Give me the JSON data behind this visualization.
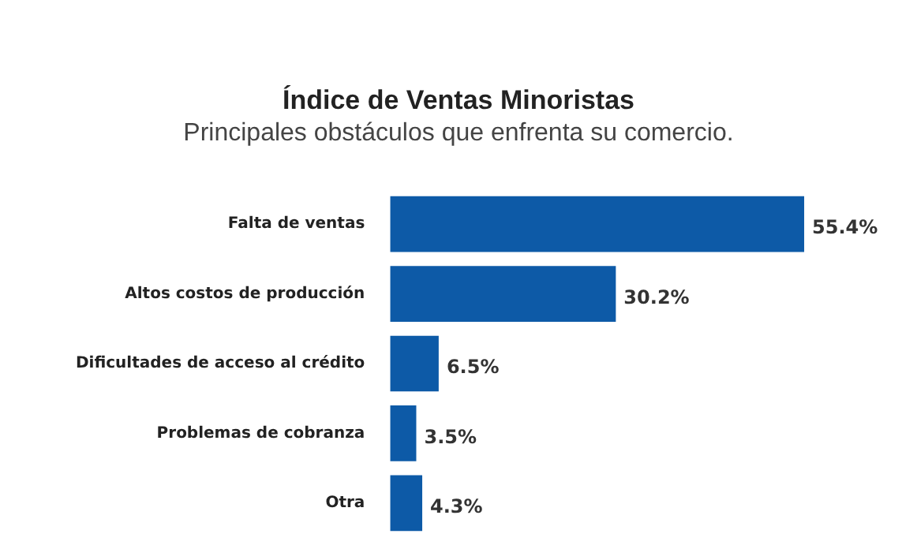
{
  "chart_data": {
    "type": "bar",
    "orientation": "horizontal",
    "title": "Índice de Ventas Minoristas",
    "subtitle": "Principales obstáculos que enfrenta su comercio.",
    "categories": [
      "Falta de ventas",
      "Altos costos de producción",
      "Dificultades de acceso al crédito",
      "Problemas de cobranza",
      "Otra"
    ],
    "values": [
      55.4,
      30.2,
      6.5,
      3.5,
      4.3
    ],
    "value_labels": [
      "55.4%",
      "30.2%",
      "6.5%",
      "3.5%",
      "4.3%"
    ],
    "color": "#0d5aa7"
  }
}
